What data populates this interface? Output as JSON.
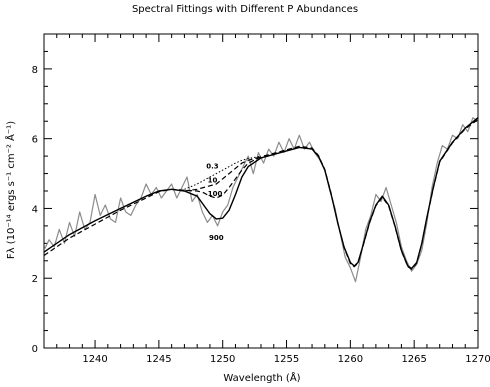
{
  "chart_data": {
    "type": "line",
    "title": "Spectral Fittings with Different P Abundances",
    "xlabel": "Wavelength (Å)",
    "ylabel": "Fλ (10⁻¹⁴ ergs s⁻¹ cm⁻² Å⁻¹)",
    "xlim": [
      1236,
      1270
    ],
    "ylim": [
      0,
      9
    ],
    "xticks": [
      1240,
      1245,
      1250,
      1255,
      1260,
      1265,
      1270
    ],
    "yticks": [
      0,
      2,
      4,
      6,
      8
    ],
    "grid": false,
    "legend": "none",
    "series": [
      {
        "style": "observed-gray",
        "color": "#8c8c8c",
        "x": [
          1236.0,
          1236.4,
          1236.8,
          1237.2,
          1237.6,
          1238.0,
          1238.4,
          1238.8,
          1239.2,
          1239.6,
          1240.0,
          1240.4,
          1240.8,
          1241.2,
          1241.6,
          1242.0,
          1242.4,
          1242.8,
          1243.2,
          1243.6,
          1244.0,
          1244.4,
          1244.8,
          1245.2,
          1245.6,
          1246.0,
          1246.4,
          1246.8,
          1247.2,
          1247.6,
          1248.0,
          1248.4,
          1248.8,
          1249.2,
          1249.6,
          1250.0,
          1250.4,
          1250.8,
          1251.2,
          1251.6,
          1252.0,
          1252.4,
          1252.8,
          1253.2,
          1253.6,
          1254.0,
          1254.4,
          1254.8,
          1255.2,
          1255.6,
          1256.0,
          1256.4,
          1256.8,
          1257.2,
          1257.6,
          1258.0,
          1258.4,
          1258.8,
          1259.2,
          1259.6,
          1260.0,
          1260.4,
          1260.8,
          1261.2,
          1261.6,
          1262.0,
          1262.4,
          1262.8,
          1263.2,
          1263.6,
          1264.0,
          1264.4,
          1264.8,
          1265.2,
          1265.6,
          1266.0,
          1266.4,
          1266.8,
          1267.2,
          1267.6,
          1268.0,
          1268.4,
          1268.8,
          1269.2,
          1269.6,
          1270.0
        ],
        "values": [
          2.8,
          3.1,
          2.9,
          3.4,
          3.0,
          3.6,
          3.2,
          3.9,
          3.4,
          3.6,
          4.4,
          3.8,
          4.1,
          3.7,
          3.6,
          4.3,
          3.9,
          3.8,
          4.1,
          4.3,
          4.7,
          4.4,
          4.6,
          4.3,
          4.5,
          4.7,
          4.3,
          4.6,
          4.9,
          4.2,
          4.4,
          3.9,
          3.6,
          3.8,
          3.5,
          3.9,
          4.1,
          4.6,
          4.9,
          5.2,
          5.5,
          5.0,
          5.6,
          5.3,
          5.7,
          5.5,
          5.9,
          5.6,
          6.0,
          5.7,
          6.1,
          5.7,
          5.9,
          5.6,
          5.4,
          5.1,
          4.5,
          4.0,
          3.3,
          2.6,
          2.3,
          1.9,
          2.6,
          3.4,
          3.8,
          4.4,
          4.2,
          4.6,
          4.1,
          3.6,
          2.9,
          2.5,
          2.2,
          2.4,
          2.8,
          3.6,
          4.6,
          5.3,
          5.8,
          5.7,
          6.1,
          6.0,
          6.4,
          6.2,
          6.6,
          6.5
        ]
      },
      {
        "style": "fit-solid",
        "color": "#000000",
        "x": [
          1236.0,
          1238.0,
          1240.0,
          1242.0,
          1244.0,
          1245.0,
          1246.0,
          1247.0,
          1248.0,
          1248.5,
          1249.0,
          1249.5,
          1250.0,
          1250.5,
          1251.0,
          1251.5,
          1252.0,
          1253.0,
          1254.0,
          1255.0,
          1256.0,
          1257.0,
          1257.5,
          1258.0,
          1258.5,
          1259.0,
          1259.5,
          1260.0,
          1260.3,
          1260.6,
          1261.0,
          1261.5,
          1262.0,
          1262.5,
          1263.0,
          1263.5,
          1264.0,
          1264.5,
          1264.8,
          1265.2,
          1265.6,
          1266.0,
          1266.5,
          1267.0,
          1268.0,
          1269.0,
          1270.0
        ],
        "values": [
          2.75,
          3.25,
          3.65,
          4.0,
          4.35,
          4.5,
          4.55,
          4.5,
          4.35,
          4.1,
          3.85,
          3.7,
          3.72,
          3.95,
          4.4,
          4.9,
          5.2,
          5.45,
          5.55,
          5.65,
          5.75,
          5.7,
          5.5,
          5.1,
          4.4,
          3.6,
          2.9,
          2.45,
          2.35,
          2.45,
          2.95,
          3.6,
          4.1,
          4.35,
          4.1,
          3.5,
          2.8,
          2.35,
          2.28,
          2.45,
          3.0,
          3.75,
          4.6,
          5.35,
          5.9,
          6.3,
          6.6
        ]
      },
      {
        "style": "fit-dashed",
        "color": "#000000",
        "x": [
          1236.0,
          1238.0,
          1240.0,
          1242.0,
          1244.0,
          1245.0,
          1246.0,
          1247.0,
          1248.0,
          1248.5,
          1249.0,
          1249.5,
          1250.0,
          1250.5,
          1251.0,
          1251.5,
          1252.0,
          1253.0,
          1254.0,
          1255.0,
          1256.0,
          1257.0,
          1257.5,
          1258.0,
          1258.5,
          1259.0,
          1259.5,
          1260.0,
          1260.3,
          1260.6,
          1261.0,
          1261.5,
          1262.0,
          1262.5,
          1263.0,
          1263.5,
          1264.0,
          1264.5,
          1264.8,
          1265.2,
          1265.6,
          1266.0,
          1266.5,
          1267.0,
          1268.0,
          1269.0,
          1270.0
        ],
        "values": [
          2.65,
          3.15,
          3.55,
          3.95,
          4.3,
          4.48,
          4.55,
          4.52,
          4.5,
          4.45,
          4.35,
          4.3,
          4.38,
          4.6,
          4.85,
          5.1,
          5.3,
          5.48,
          5.58,
          5.68,
          5.78,
          5.73,
          5.52,
          5.12,
          4.42,
          3.6,
          2.88,
          2.42,
          2.33,
          2.43,
          2.93,
          3.58,
          4.08,
          4.32,
          4.08,
          3.48,
          2.78,
          2.33,
          2.26,
          2.43,
          2.98,
          3.73,
          4.58,
          5.33,
          5.88,
          6.28,
          6.55
        ]
      },
      {
        "style": "fit-dashed",
        "color": "#000000",
        "x": [
          1247.0,
          1248.0,
          1248.5,
          1249.0,
          1249.5,
          1250.0,
          1250.5,
          1251.0,
          1251.5,
          1252.0,
          1253.0
        ],
        "values": [
          4.5,
          4.55,
          4.6,
          4.65,
          4.7,
          4.85,
          5.0,
          5.15,
          5.3,
          5.38,
          5.48
        ]
      },
      {
        "style": "fit-dotted",
        "color": "#000000",
        "x": [
          1247.0,
          1248.0,
          1248.5,
          1249.0,
          1249.5,
          1250.0,
          1250.5,
          1251.0,
          1251.5,
          1252.0,
          1253.0
        ],
        "values": [
          4.55,
          4.7,
          4.8,
          4.9,
          5.0,
          5.1,
          5.2,
          5.3,
          5.38,
          5.43,
          5.5
        ]
      }
    ],
    "annotations": [
      {
        "text": "0.3",
        "x": 1249.2,
        "y": 5.15
      },
      {
        "text": "10",
        "x": 1249.2,
        "y": 4.75
      },
      {
        "text": "100",
        "x": 1249.4,
        "y": 4.35
      },
      {
        "text": "900",
        "x": 1249.5,
        "y": 3.1
      }
    ]
  }
}
